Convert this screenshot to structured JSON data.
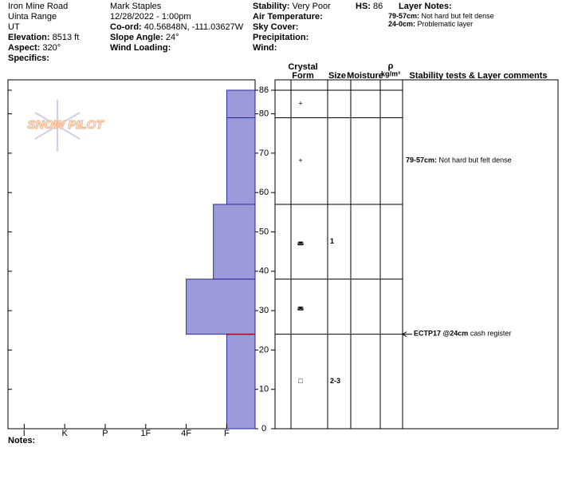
{
  "header": {
    "col1": [
      {
        "value": "Iron Mine Road"
      },
      {
        "value": "Uinta Range"
      },
      {
        "value": "UT"
      },
      {
        "label": "Elevation:",
        "value": "8513 ft"
      },
      {
        "label": "Aspect:",
        "value": "320°"
      },
      {
        "label": "Specifics:"
      }
    ],
    "col2": [
      {
        "value": "Mark Staples"
      },
      {
        "value": "12/28/2022 - 1:00pm"
      },
      {
        "label": "Co-ord:",
        "value": "40.56848N, -111.03627W"
      },
      {
        "label": "Slope Angle:",
        "value": "24°"
      },
      {
        "label": "Wind Loading:"
      }
    ],
    "col3": [
      {
        "label": "Stability:",
        "value": "Very Poor"
      },
      {
        "label": "Air Temperature:"
      },
      {
        "label": "Sky Cover:"
      },
      {
        "label": "Precipitation:"
      },
      {
        "label": "Wind:"
      }
    ],
    "hs": {
      "label": "HS:",
      "value": 86
    },
    "layer_notes": {
      "title": "Layer Notes:",
      "items": [
        {
          "range": "79-57cm:",
          "text": "Not hard but felt dense"
        },
        {
          "range": "24-0cm:",
          "text": "Problematic layer"
        }
      ]
    }
  },
  "logo": "SNOW PILOT",
  "profile": {
    "depth_lim": [
      0,
      86
    ],
    "depth_ticks": [
      0,
      10,
      20,
      30,
      40,
      50,
      60,
      70,
      80,
      86
    ],
    "hardness_lim": [
      0.3,
      6.4
    ],
    "hardness_ticks": [
      {
        "value": 6,
        "label": "I"
      },
      {
        "value": 5,
        "label": "K"
      },
      {
        "value": 4,
        "label": "P"
      },
      {
        "value": 3,
        "label": "1F"
      },
      {
        "value": 2,
        "label": "4F"
      },
      {
        "value": 1,
        "label": "F"
      }
    ],
    "color": "#9b9bd9",
    "layers": [
      {
        "top": 86,
        "bottom": 79,
        "hardness": 1,
        "form": "+"
      },
      {
        "top": 79,
        "bottom": 57,
        "hardness": 1,
        "form": "+",
        "comment": {
          "range": "79-57cm:",
          "text": "Not hard but felt dense"
        }
      },
      {
        "top": 57,
        "bottom": 38,
        "hardness": 1.33,
        "form": "◛",
        "size": "1"
      },
      {
        "top": 38,
        "bottom": 24,
        "hardness": 2,
        "form": "◛"
      },
      {
        "top": 24,
        "bottom": 0,
        "hardness": 1,
        "form": "□",
        "size": "2-3"
      }
    ],
    "stability_tests": [
      {
        "depth": 24,
        "label": "ECTP17 @24cm",
        "comment": "cash register"
      }
    ]
  },
  "table": {
    "crystal": "Crystal",
    "form": "Form",
    "size": "Size",
    "moisture": "Moisture",
    "density_symbol": "ρ",
    "density_unit": "kg/m³",
    "comments": "Stability tests & Layer comments"
  },
  "notes": "Notes:"
}
